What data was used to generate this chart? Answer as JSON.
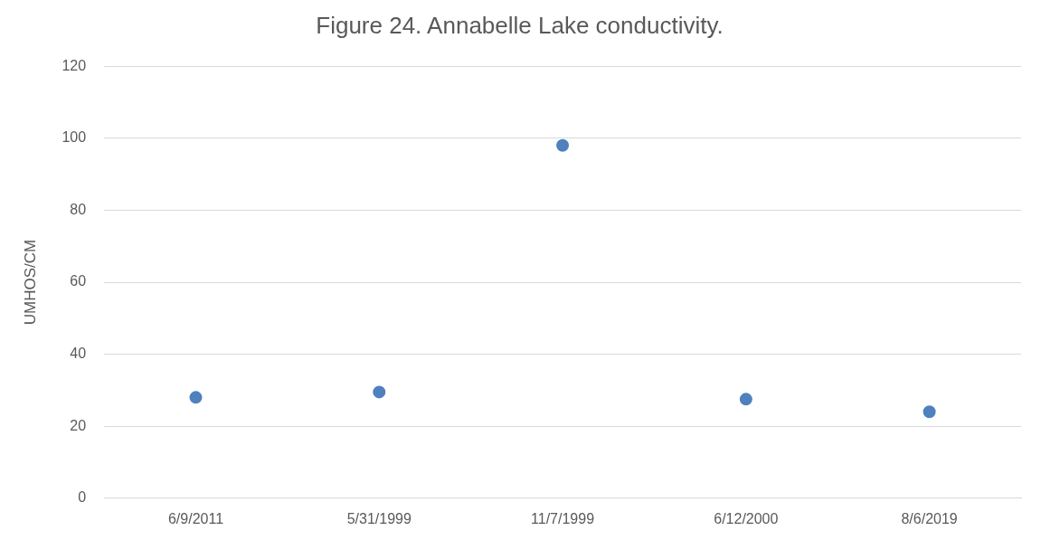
{
  "chart_data": {
    "type": "scatter",
    "title": "Figure 24. Annabelle Lake conductivity.",
    "ylabel": "UMHOS/CM",
    "categories": [
      "6/9/2011",
      "5/31/1999",
      "11/7/1999",
      "6/12/2000",
      "8/6/2019"
    ],
    "series": [
      {
        "color": "#4f81bd",
        "values": [
          28,
          29.5,
          98,
          27.5,
          24
        ]
      }
    ],
    "ylim": [
      0,
      120
    ],
    "yticks": [
      0,
      20,
      40,
      60,
      80,
      100,
      120
    ],
    "grid": "y",
    "legend": false,
    "marker": "circle"
  }
}
